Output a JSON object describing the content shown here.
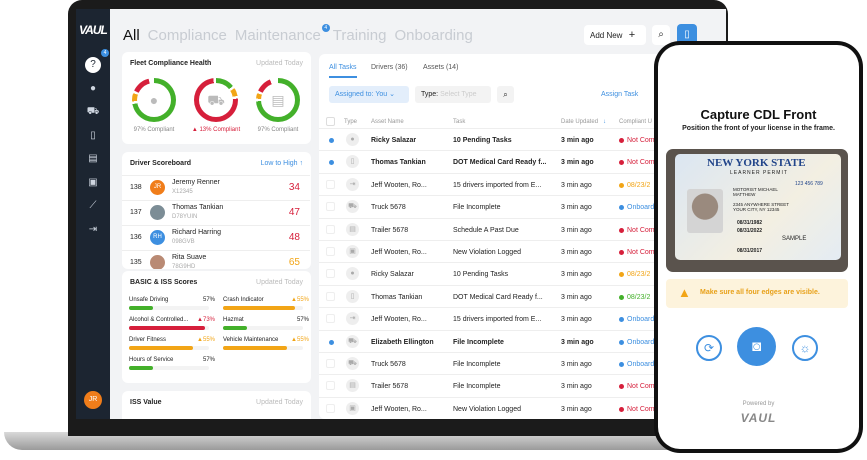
{
  "sidebar": {
    "logo": "VAUL",
    "badge": "4",
    "avatar": "JR",
    "icons": [
      "help-icon",
      "user-icon",
      "truck-icon",
      "document-icon",
      "trailer-icon",
      "clipboard-icon",
      "chart-icon",
      "import-icon"
    ]
  },
  "tabs": [
    {
      "label": "All",
      "active": true
    },
    {
      "label": "Compliance"
    },
    {
      "label": "Maintenance",
      "badge": "4"
    },
    {
      "label": "Training"
    },
    {
      "label": "Onboarding"
    }
  ],
  "header": {
    "add_new": "Add New"
  },
  "fleet": {
    "title": "Fleet Compliance Health",
    "updated": "Updated Today",
    "items": [
      {
        "label": "97% Compliant",
        "alert": false
      },
      {
        "label": "13% Compliant",
        "alert": true
      },
      {
        "label": "97% Compliant",
        "alert": false
      }
    ]
  },
  "scoreboard": {
    "title": "Driver Scoreboard",
    "sort": "Low to High",
    "drivers": [
      {
        "rank": "138",
        "initials": "JR",
        "name": "Jeremy Renner",
        "id": "X12345",
        "score": "34",
        "color": "#d61f3b",
        "avatar": "#f07d1a"
      },
      {
        "rank": "137",
        "initials": "",
        "name": "Thomas Tankian",
        "id": "D78YUIN",
        "score": "47",
        "color": "#d61f3b",
        "avatar": "#7c8d96"
      },
      {
        "rank": "136",
        "initials": "RH",
        "name": "Richard Harring",
        "id": "098GVB",
        "score": "48",
        "color": "#d61f3b",
        "avatar": "#3d8fe0"
      },
      {
        "rank": "135",
        "initials": "",
        "name": "Rita Suave",
        "id": "78G9HD",
        "score": "65",
        "color": "#f2a516",
        "avatar": "#b98a74"
      }
    ]
  },
  "basic": {
    "title": "BASIC & ISS Scores",
    "updated": "Updated Today",
    "scores": [
      {
        "label": "Unsafe Driving",
        "value": "57%",
        "pct": 30,
        "color": "#43b02a",
        "warn": false
      },
      {
        "label": "Crash Indicator",
        "value": "55%",
        "pct": 90,
        "color": "#f2a516",
        "warn": true
      },
      {
        "label": "Alcohol & Controlled...",
        "value": "73%",
        "pct": 95,
        "color": "#d61f3b",
        "warn": true
      },
      {
        "label": "Hazmat",
        "value": "57%",
        "pct": 30,
        "color": "#43b02a",
        "warn": false
      },
      {
        "label": "Driver Fitness",
        "value": "55%",
        "pct": 80,
        "color": "#f2a516",
        "warn": true
      },
      {
        "label": "Vehicle Maintenance",
        "value": "55%",
        "pct": 80,
        "color": "#f2a516",
        "warn": true
      },
      {
        "label": "Hours of Service",
        "value": "57%",
        "pct": 30,
        "color": "#43b02a",
        "warn": false
      }
    ]
  },
  "iss": {
    "title": "ISS Value",
    "updated": "Updated Today"
  },
  "tasks": {
    "tabs": [
      "All Tasks",
      "Drivers (36)",
      "Assets (14)"
    ],
    "assigned": "Assigned to: You",
    "type_label": "Type:",
    "type_placeholder": "Select Type",
    "assign_task": "Assign Task",
    "columns": [
      "Type",
      "Asset Name",
      "Task",
      "Date Updated",
      "Compliant U"
    ],
    "rows": [
      {
        "unread": true,
        "icon": "user-icon",
        "asset": "Ricky Salazar",
        "task": "10 Pending Tasks",
        "date": "3 min ago",
        "status": "Not Com",
        "color": "#d61f3b"
      },
      {
        "unread": true,
        "icon": "document-icon",
        "asset": "Thomas Tankian",
        "task": "DOT Medical Card Ready f...",
        "date": "3 min ago",
        "status": "Not Com",
        "color": "#d61f3b"
      },
      {
        "unread": false,
        "icon": "import-icon",
        "asset": "Jeff Wooten, Ro...",
        "task": "15 drivers imported from E...",
        "date": "3 min ago",
        "status": "08/23/2",
        "color": "#f2a516"
      },
      {
        "unread": false,
        "icon": "truck-icon",
        "asset": "Truck 5678",
        "task": "File Incomplete",
        "date": "3 min ago",
        "status": "Onboard",
        "color": "#3d8fe0"
      },
      {
        "unread": false,
        "icon": "trailer-icon",
        "asset": "Trailer 5678",
        "task": "Schedule A Past Due",
        "date": "3 min ago",
        "status": "Not Com",
        "color": "#d61f3b"
      },
      {
        "unread": false,
        "icon": "clipboard-icon",
        "asset": "Jeff Wooten, Ro...",
        "task": "New Violation Logged",
        "date": "3 min ago",
        "status": "Not Com",
        "color": "#d61f3b"
      },
      {
        "unread": false,
        "icon": "user-icon",
        "asset": "Ricky Salazar",
        "task": "10 Pending Tasks",
        "date": "3 min ago",
        "status": "08/23/2",
        "color": "#f2a516"
      },
      {
        "unread": false,
        "icon": "document-icon",
        "asset": "Thomas Tankian",
        "task": "DOT Medical Card Ready f...",
        "date": "3 min ago",
        "status": "08/23/2",
        "color": "#43b02a"
      },
      {
        "unread": false,
        "icon": "import-icon",
        "asset": "Jeff Wooten, Ro...",
        "task": "15 drivers imported from E...",
        "date": "3 min ago",
        "status": "Onboard",
        "color": "#3d8fe0"
      },
      {
        "unread": true,
        "icon": "truck-icon",
        "asset": "Elizabeth Ellington",
        "task": "File Incomplete",
        "date": "3 min ago",
        "status": "Onboard",
        "color": "#3d8fe0"
      },
      {
        "unread": false,
        "icon": "truck-icon",
        "asset": "Truck 5678",
        "task": "File Incomplete",
        "date": "3 min ago",
        "status": "Onboard",
        "color": "#3d8fe0"
      },
      {
        "unread": false,
        "icon": "trailer-icon",
        "asset": "Trailer 5678",
        "task": "File Incomplete",
        "date": "3 min ago",
        "status": "Not Com",
        "color": "#d61f3b"
      },
      {
        "unread": false,
        "icon": "clipboard-icon",
        "asset": "Jeff Wooten, Ro...",
        "task": "New Violation Logged",
        "date": "3 min ago",
        "status": "Not Com",
        "color": "#d61f3b"
      }
    ]
  },
  "phone": {
    "title": "Capture CDL Front",
    "subtitle": "Position the front of your license in the frame.",
    "license": {
      "state": "NEW YORK STATE",
      "type": "LEARNER PERMIT",
      "name": "MOTORIST MICHAEL MATTHEW",
      "address": "2345 ANYWHERE STREET YOUR CITY, NY 12345",
      "number": "123 456 789",
      "dob": "08/31/1982",
      "expires": "08/31/2022",
      "issued": "08/31/2017",
      "sample": "SAMPLE"
    },
    "warning": "Make sure all four edges are visible.",
    "powered_by": "Powered by",
    "brand": "VAUL"
  },
  "colors": {
    "accent": "#3d8fe0",
    "red": "#d61f3b",
    "amber": "#f2a516",
    "green": "#43b02a",
    "sidebar": "#1c2531"
  }
}
